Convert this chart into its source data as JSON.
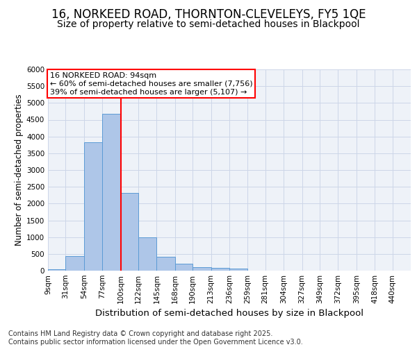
{
  "title": "16, NORKEED ROAD, THORNTON-CLEVELEYS, FY5 1QE",
  "subtitle": "Size of property relative to semi-detached houses in Blackpool",
  "xlabel": "Distribution of semi-detached houses by size in Blackpool",
  "ylabel": "Number of semi-detached properties",
  "footer": "Contains HM Land Registry data © Crown copyright and database right 2025.\nContains public sector information licensed under the Open Government Licence v3.0.",
  "bins": [
    9,
    31,
    54,
    77,
    100,
    122,
    145,
    168,
    190,
    213,
    236,
    259,
    281,
    304,
    327,
    349,
    372,
    395,
    418,
    440,
    463
  ],
  "bar_heights": [
    50,
    430,
    3820,
    4680,
    2310,
    1000,
    415,
    210,
    95,
    75,
    55,
    0,
    0,
    0,
    0,
    0,
    0,
    0,
    0,
    0
  ],
  "bar_color": "#aec6e8",
  "bar_edge_color": "#5b9bd5",
  "grid_color": "#ccd6e8",
  "background_color": "#eef2f8",
  "vline_x": 100,
  "vline_color": "red",
  "annotation_text": "16 NORKEED ROAD: 94sqm\n← 60% of semi-detached houses are smaller (7,756)\n39% of semi-detached houses are larger (5,107) →",
  "annotation_box_color": "red",
  "annotation_fill": "white",
  "ylim": [
    0,
    6000
  ],
  "yticks": [
    0,
    500,
    1000,
    1500,
    2000,
    2500,
    3000,
    3500,
    4000,
    4500,
    5000,
    5500,
    6000
  ],
  "title_fontsize": 12,
  "subtitle_fontsize": 10,
  "xlabel_fontsize": 9.5,
  "ylabel_fontsize": 8.5,
  "tick_fontsize": 7.5,
  "annotation_fontsize": 8,
  "footer_fontsize": 7
}
